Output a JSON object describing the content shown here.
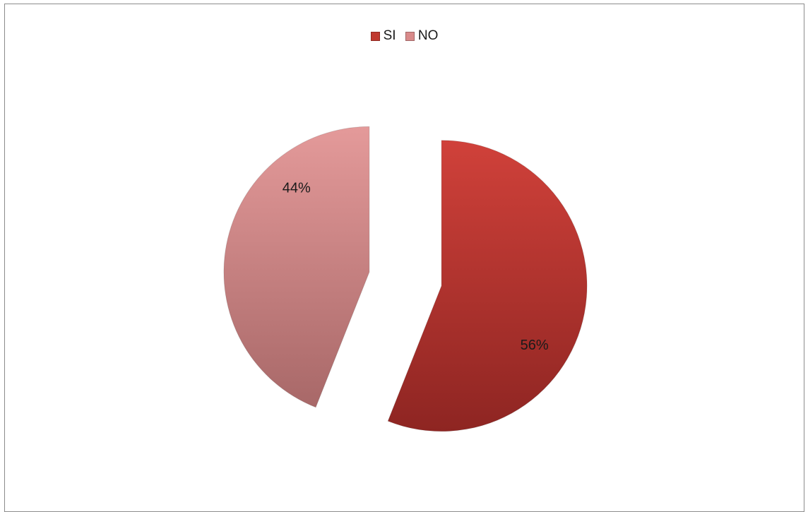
{
  "chart_data": {
    "type": "pie",
    "title": "",
    "legend_position": "top",
    "slices": [
      {
        "name": "SI",
        "value": 56,
        "label": "56%",
        "color": "#c0392f"
      },
      {
        "name": "NO",
        "value": 44,
        "label": "44%",
        "color": "#d98a8a"
      }
    ]
  }
}
